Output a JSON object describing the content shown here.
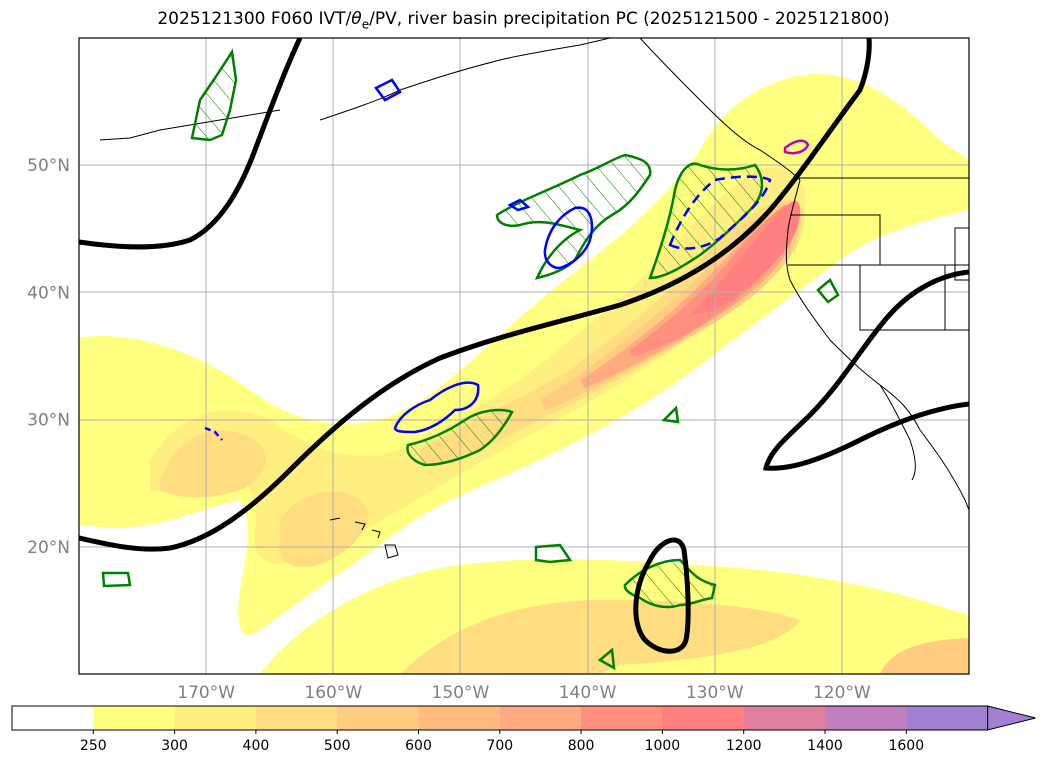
{
  "title": {
    "prefix": "2025121300 F060 IVT/",
    "theta": "θ",
    "sub": "e",
    "suffix": "/PV, river basin precipitation PC (2025121500 - 2025121800)"
  },
  "map": {
    "extent": {
      "lon_min": -180,
      "lon_max": -110,
      "lat_min": 10,
      "lat_max": 60
    },
    "lat_ticks": [
      {
        "value": 50,
        "label": "50°N"
      },
      {
        "value": 40,
        "label": "40°N"
      },
      {
        "value": 30,
        "label": "30°N"
      },
      {
        "value": 20,
        "label": "20°N"
      }
    ],
    "lon_ticks": [
      {
        "value": -170,
        "label": "170°W"
      },
      {
        "value": -160,
        "label": "160°W"
      },
      {
        "value": -150,
        "label": "150°W"
      },
      {
        "value": -140,
        "label": "140°W"
      },
      {
        "value": -130,
        "label": "130°W"
      },
      {
        "value": -120,
        "label": "120°W"
      }
    ],
    "colors": {
      "ivt_250": "#ffff80",
      "ivt_300": "#ffee80",
      "ivt_400": "#ffdd80",
      "ivt_500": "#ffcc80",
      "ivt_600": "#ffbb80",
      "ivt_700": "#ffaa80",
      "ivt_800": "#ff9080",
      "ivt_1000": "#ff8080",
      "ivt_1200": "#e080a0",
      "ivt_1400": "#c080c0",
      "ivt_1600": "#a080d0",
      "pv_contour": "#000000",
      "theta_e_green": "#008000",
      "theta_e_blue": "#0000ff",
      "magenta": "#c000c0",
      "grid": "#b0b0b0"
    }
  },
  "colorbar": {
    "levels": [
      "250",
      "300",
      "400",
      "500",
      "600",
      "700",
      "800",
      "1000",
      "1200",
      "1400",
      "1600"
    ],
    "colors": [
      "#ffffff",
      "#ffff80",
      "#ffee80",
      "#ffdd80",
      "#ffcc80",
      "#ffbb80",
      "#ffaa80",
      "#ff9080",
      "#ff8080",
      "#e080a0",
      "#c080c0",
      "#a080d0"
    ],
    "extend": "max"
  }
}
